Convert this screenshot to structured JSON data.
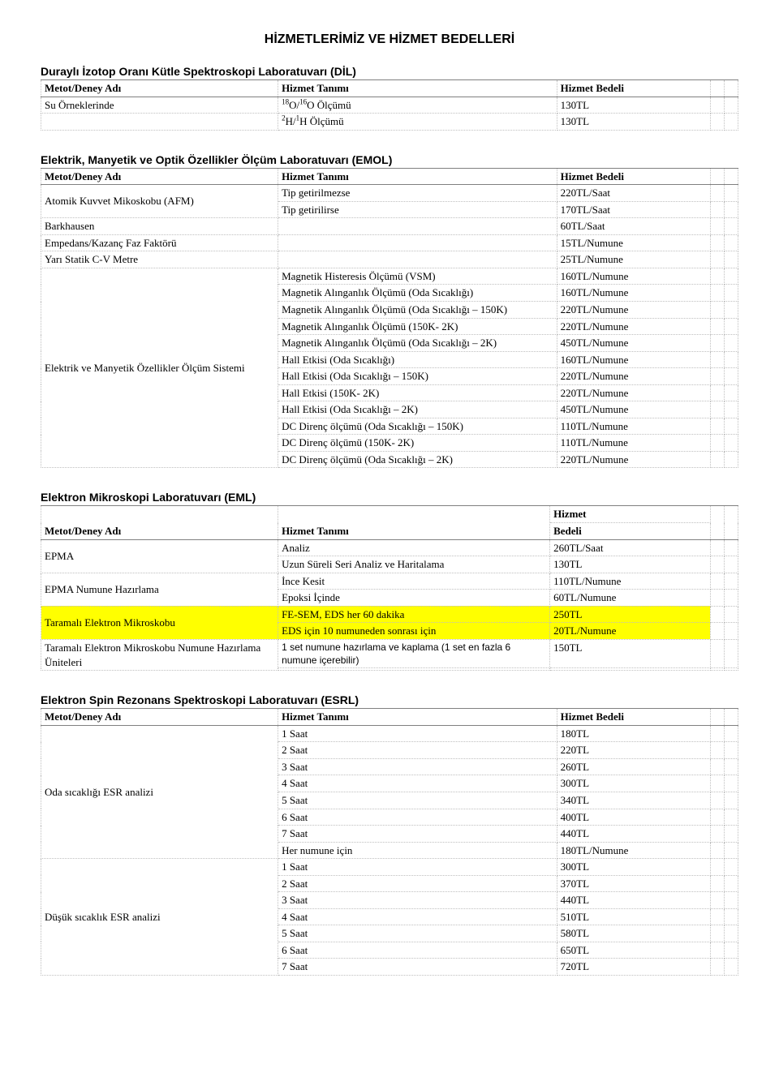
{
  "page_title": "HİZMETLERİMİZ VE HİZMET BEDELLERİ",
  "headers": {
    "metot": "Metot/Deney Adı",
    "tanim": "Hizmet Tanımı",
    "bedel": "Hizmet Bedeli",
    "bedel_hizmet": "Hizmet",
    "bedel_bedeli": "Bedeli"
  },
  "sections": {
    "dil": {
      "title": "Duraylı İzotop Oranı Kütle Spektroskopi Laboratuvarı (DİL)",
      "rows": [
        {
          "name": "Su Örneklerinde",
          "desc_html": "<sup>18</sup>O/<sup>16</sup>O Ölçümü",
          "price": "130TL"
        },
        {
          "name": "",
          "desc_html": "<sup>2</sup>H/<sup>1</sup>H Ölçümü",
          "price": "130TL"
        }
      ]
    },
    "emol": {
      "title": "Elektrik, Manyetik ve Optik Özellikler Ölçüm Laboratuvarı (EMOL)",
      "rows": [
        {
          "name": "Atomik Kuvvet Mikoskobu (AFM)",
          "rowspan": 2,
          "desc": "Tip getirilmezse",
          "price": "220TL/Saat"
        },
        {
          "desc": "Tip getirilirse",
          "price": "170TL/Saat"
        },
        {
          "name": "Barkhausen",
          "desc": "",
          "price": "60TL/Saat"
        },
        {
          "name": "Empedans/Kazanç Faz Faktörü",
          "desc": "",
          "price": "15TL/Numune"
        },
        {
          "name": "Yarı Statik C-V Metre",
          "desc": "",
          "price": "25TL/Numune"
        },
        {
          "name": "Elektrik ve Manyetik Özellikler Ölçüm Sistemi",
          "rowspan": 12,
          "desc": "Magnetik Histeresis Ölçümü (VSM)",
          "price": "160TL/Numune"
        },
        {
          "desc": "Magnetik Alınganlık Ölçümü (Oda Sıcaklığı)",
          "price": "160TL/Numune"
        },
        {
          "desc": "Magnetik Alınganlık Ölçümü (Oda Sıcaklığı – 150K)",
          "price": "220TL/Numune"
        },
        {
          "desc": "Magnetik Alınganlık Ölçümü (150K- 2K)",
          "price": "220TL/Numune"
        },
        {
          "desc": "Magnetik Alınganlık Ölçümü (Oda Sıcaklığı – 2K)",
          "price": "450TL/Numune"
        },
        {
          "desc": "Hall Etkisi (Oda Sıcaklığı)",
          "price": "160TL/Numune"
        },
        {
          "desc": "Hall Etkisi (Oda Sıcaklığı – 150K)",
          "price": "220TL/Numune"
        },
        {
          "desc": "Hall Etkisi (150K- 2K)",
          "price": "220TL/Numune"
        },
        {
          "desc": "Hall Etkisi (Oda Sıcaklığı – 2K)",
          "price": "450TL/Numune"
        },
        {
          "desc": "DC Direnç ölçümü (Oda Sıcaklığı – 150K)",
          "price": "110TL/Numune"
        },
        {
          "desc": "DC Direnç ölçümü (150K- 2K)",
          "price": "110TL/Numune"
        },
        {
          "desc": "DC Direnç ölçümü (Oda Sıcaklığı – 2K)",
          "price": "220TL/Numune"
        }
      ]
    },
    "eml": {
      "title": "Elektron Mikroskopi Laboratuvarı (EML)",
      "rows": [
        {
          "name": "EPMA",
          "rowspan": 2,
          "desc": "Analiz",
          "price": "260TL/Saat"
        },
        {
          "desc": "Uzun Süreli Seri Analiz ve Haritalama",
          "price": "130TL"
        },
        {
          "name": "EPMA Numune Hazırlama",
          "rowspan": 2,
          "desc": "İnce Kesit",
          "price": "110TL/Numune"
        },
        {
          "desc": "Epoksi İçinde",
          "price": "60TL/Numune"
        },
        {
          "name": "Taramalı Elektron Mikroskobu",
          "rowspan": 2,
          "hl": true,
          "desc": "FE-SEM, EDS her 60 dakika",
          "price": "250TL",
          "desc_hl": true,
          "price_hl": true
        },
        {
          "desc": "EDS için 10 numuneden sonrası için",
          "price": "20TL/Numune",
          "desc_hl": true,
          "price_hl": true
        },
        {
          "name": "Taramalı Elektron Mikroskobu Numune Hazırlama Üniteleri",
          "rowspan": 2,
          "desc": "1 set numune hazırlama ve kaplama (1 set en fazla 6 numune içerebilir)",
          "desc_sans": true,
          "price": "150TL"
        },
        {
          "desc": "",
          "price": ""
        }
      ]
    },
    "esrl": {
      "title": "Elektron Spin Rezonans Spektroskopi Laboratuvarı (ESRL)",
      "rows": [
        {
          "name": "Oda sıcaklığı ESR analizi",
          "rowspan": 8,
          "desc": "1 Saat",
          "price": "180TL"
        },
        {
          "desc": "2 Saat",
          "price": "220TL"
        },
        {
          "desc": "3 Saat",
          "price": "260TL"
        },
        {
          "desc": "4 Saat",
          "price": "300TL"
        },
        {
          "desc": "5 Saat",
          "price": "340TL"
        },
        {
          "desc": "6 Saat",
          "price": "400TL"
        },
        {
          "desc": "7 Saat",
          "price": "440TL"
        },
        {
          "desc": "Her numune için",
          "price": "180TL/Numune"
        },
        {
          "name": "Düşük sıcaklık ESR analizi",
          "rowspan": 7,
          "desc": "1 Saat",
          "price": "300TL"
        },
        {
          "desc": "2 Saat",
          "price": "370TL"
        },
        {
          "desc": "3 Saat",
          "price": "440TL"
        },
        {
          "desc": "4 Saat",
          "price": "510TL"
        },
        {
          "desc": "5 Saat",
          "price": "580TL"
        },
        {
          "desc": "6 Saat",
          "price": "650TL"
        },
        {
          "desc": "7 Saat",
          "price": "720TL"
        }
      ]
    }
  }
}
